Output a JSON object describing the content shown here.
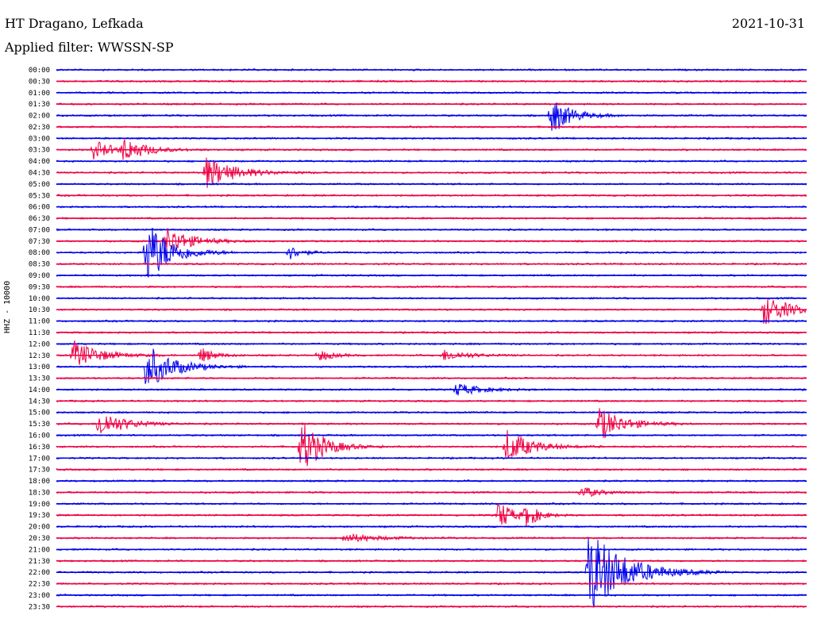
{
  "header": {
    "station": "HT Dragano, Lefkada",
    "date": "2021-10-31",
    "filter": "Applied filter: WWSSN-SP"
  },
  "chart_data": {
    "type": "line",
    "subtype": "helicorder",
    "title": "HT Dragano, Lefkada",
    "date": "2021-10-31",
    "filter": "WWSSN-SP",
    "ylabel": "HHZ - 10000",
    "row_labels": [
      "00:00",
      "00:30",
      "01:00",
      "01:30",
      "02:00",
      "02:30",
      "03:00",
      "03:30",
      "04:00",
      "04:30",
      "05:00",
      "05:30",
      "06:00",
      "06:30",
      "07:00",
      "07:30",
      "08:00",
      "08:30",
      "09:00",
      "09:30",
      "10:00",
      "10:30",
      "11:00",
      "11:30",
      "12:00",
      "12:30",
      "13:00",
      "13:30",
      "14:00",
      "14:30",
      "15:00",
      "15:30",
      "16:00",
      "16:30",
      "17:00",
      "17:30",
      "18:00",
      "18:30",
      "19:00",
      "19:30",
      "20:00",
      "20:30",
      "21:00",
      "21:30",
      "22:00",
      "22:30",
      "23:00",
      "23:30"
    ],
    "colors": [
      "#0000ee",
      "#ee0044"
    ],
    "events": [
      {
        "row": 4,
        "minute": 19.8,
        "amp": 24,
        "dur": 1.2
      },
      {
        "row": 7,
        "minute": 1.5,
        "amp": 12,
        "dur": 1.2
      },
      {
        "row": 7,
        "minute": 2.7,
        "amp": 14,
        "dur": 1.4
      },
      {
        "row": 9,
        "minute": 6.0,
        "amp": 20,
        "dur": 1.8
      },
      {
        "row": 15,
        "minute": 4.4,
        "amp": 18,
        "dur": 1.5
      },
      {
        "row": 16,
        "minute": 3.6,
        "amp": 42,
        "dur": 1.5
      },
      {
        "row": 16,
        "minute": 9.3,
        "amp": 9,
        "dur": 0.8
      },
      {
        "row": 21,
        "minute": 28.3,
        "amp": 20,
        "dur": 1.5
      },
      {
        "row": 25,
        "minute": 0.7,
        "amp": 18,
        "dur": 1.6
      },
      {
        "row": 25,
        "minute": 5.8,
        "amp": 10,
        "dur": 0.8
      },
      {
        "row": 25,
        "minute": 10.5,
        "amp": 8,
        "dur": 0.8
      },
      {
        "row": 25,
        "minute": 15.5,
        "amp": 7,
        "dur": 1.5
      },
      {
        "row": 26,
        "minute": 3.6,
        "amp": 30,
        "dur": 1.6
      },
      {
        "row": 28,
        "minute": 16.0,
        "amp": 8,
        "dur": 1.5
      },
      {
        "row": 31,
        "minute": 1.7,
        "amp": 18,
        "dur": 1.5
      },
      {
        "row": 31,
        "minute": 21.7,
        "amp": 22,
        "dur": 1.5
      },
      {
        "row": 33,
        "minute": 9.8,
        "amp": 35,
        "dur": 1.3
      },
      {
        "row": 33,
        "minute": 18.0,
        "amp": 22,
        "dur": 1.5
      },
      {
        "row": 37,
        "minute": 21.0,
        "amp": 8,
        "dur": 1.0
      },
      {
        "row": 39,
        "minute": 17.7,
        "amp": 20,
        "dur": 0.8
      },
      {
        "row": 39,
        "minute": 18.8,
        "amp": 14,
        "dur": 0.8
      },
      {
        "row": 41,
        "minute": 11.5,
        "amp": 6,
        "dur": 2.0
      },
      {
        "row": 44,
        "minute": 21.3,
        "amp": 55,
        "dur": 2.2
      }
    ]
  }
}
